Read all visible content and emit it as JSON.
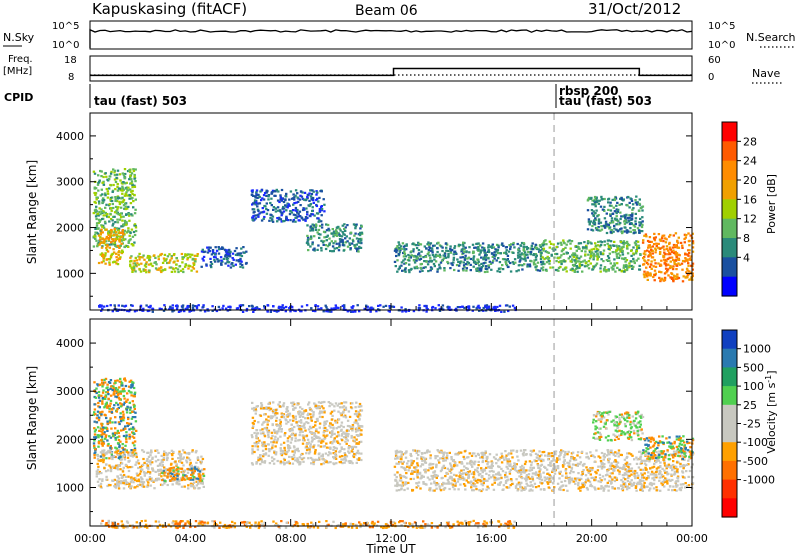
{
  "header": {
    "station": "Kapuskasing (fitACF)",
    "beam": "Beam 06",
    "date": "31/Oct/2012"
  },
  "top_panels": {
    "nsky_label": "N.Sky",
    "nsearch_label": "N.Search",
    "freq_label_1": "Freq.",
    "freq_label_2": "[MHz]",
    "nave_label": "Nave",
    "cpid_label": "CPID",
    "nsky_ticks": [
      "10^5",
      "10^0"
    ],
    "nsearch_ticks": [
      "10^5",
      "10^0"
    ],
    "freq_ticks": [
      "18",
      "8"
    ],
    "nave_ticks": [
      "60",
      "0"
    ],
    "cpid_entries": [
      "tau (fast) 503",
      "rbsp 200",
      "tau (fast) 503"
    ]
  },
  "colorbars": {
    "power": {
      "label": "Power [dB]",
      "ticks": [
        "28",
        "24",
        "20",
        "16",
        "12",
        "8",
        "4"
      ],
      "colors": [
        "#ff0000",
        "#ff5a00",
        "#ff8c00",
        "#f0a000",
        "#a0d000",
        "#60b860",
        "#2a8a7a",
        "#1a50a0",
        "#0000ff"
      ]
    },
    "velocity": {
      "label": "Velocity [m s",
      "label_sup": "-1",
      "label_end": "]",
      "ticks": [
        "1000",
        "500",
        "100",
        "25",
        "-25",
        "-100",
        "-500",
        "-1000"
      ],
      "colors": [
        "#1040c0",
        "#2a7ab0",
        "#20a060",
        "#50d050",
        "#c8c8c0",
        "#c8c8c0",
        "#ffa000",
        "#ff7000",
        "#ff3000",
        "#ff0000"
      ]
    }
  },
  "chart_data": {
    "type": "heatmap",
    "xlabel": "Time UT",
    "x_ticks": [
      "00:00",
      "04:00",
      "08:00",
      "12:00",
      "16:00",
      "20:00",
      "00:00"
    ],
    "x_range_hours": [
      0,
      24
    ],
    "ylabel": "Slant Range [km]",
    "y_ticks": [
      "4000",
      "3000",
      "2000",
      "1000"
    ],
    "y_range_km": [
      200,
      4500
    ],
    "mode_change_hours": [
      18.5
    ],
    "frequency_step": {
      "low_mhz": 10,
      "high_mhz": 13,
      "start_hour": 12.1,
      "end_hour": 21.9
    },
    "power_regions": [
      {
        "t0": 0.1,
        "t1": 1.8,
        "r0": 1600,
        "r1": 3300,
        "c": 3
      },
      {
        "t0": 0.3,
        "t1": 1.3,
        "r0": 1200,
        "r1": 2000,
        "c": 5
      },
      {
        "t0": 1.5,
        "t1": 4.3,
        "r0": 1050,
        "r1": 1450,
        "c": 4
      },
      {
        "t0": 4.4,
        "t1": 6.2,
        "r0": 1150,
        "r1": 1600,
        "c": 1
      },
      {
        "t0": 6.4,
        "t1": 9.3,
        "r0": 2150,
        "r1": 2850,
        "c": 1
      },
      {
        "t0": 8.6,
        "t1": 10.8,
        "r0": 1500,
        "r1": 2100,
        "c": 2
      },
      {
        "t0": 12.1,
        "t1": 18.0,
        "r0": 1050,
        "r1": 1700,
        "c": 2
      },
      {
        "t0": 18.0,
        "t1": 21.9,
        "r0": 1050,
        "r1": 1750,
        "c": 3
      },
      {
        "t0": 22.0,
        "t1": 24.0,
        "r0": 850,
        "r1": 1900,
        "c": 6
      },
      {
        "t0": 19.8,
        "t1": 22.0,
        "r0": 1900,
        "r1": 2700,
        "c": 2
      },
      {
        "t0": 0.3,
        "t1": 17.0,
        "r0": 180,
        "r1": 330,
        "c": 0
      }
    ],
    "velocity_regions": [
      {
        "t0": 0.1,
        "t1": 1.8,
        "r0": 1600,
        "r1": 3300,
        "c": 7
      },
      {
        "t0": 0.2,
        "t1": 4.5,
        "r0": 1000,
        "r1": 1800,
        "c": 4
      },
      {
        "t0": 2.8,
        "t1": 4.6,
        "r0": 1150,
        "r1": 1450,
        "c": 7
      },
      {
        "t0": 6.4,
        "t1": 10.8,
        "r0": 1500,
        "r1": 2800,
        "c": 4
      },
      {
        "t0": 12.1,
        "t1": 24.0,
        "r0": 950,
        "r1": 1800,
        "c": 4
      },
      {
        "t0": 22.0,
        "t1": 24.0,
        "r0": 1600,
        "r1": 2100,
        "c": 7
      },
      {
        "t0": 20.0,
        "t1": 22.0,
        "r0": 2000,
        "r1": 2600,
        "c": 6
      },
      {
        "t0": 0.3,
        "t1": 17.0,
        "r0": 180,
        "r1": 330,
        "c": 3
      }
    ]
  }
}
